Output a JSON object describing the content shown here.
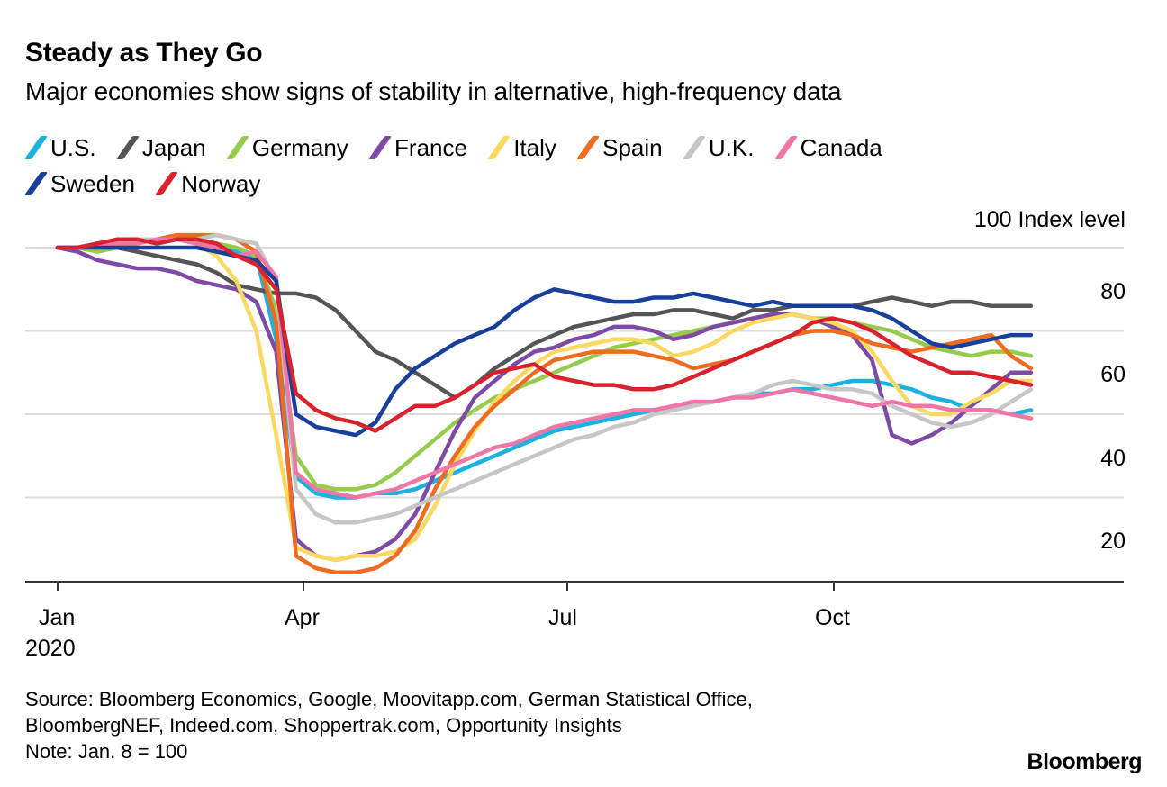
{
  "header": {
    "title": "Steady as They Go",
    "subtitle": "Major economies show signs of stability in alternative, high-frequency data"
  },
  "legend": [
    {
      "label": "U.S.",
      "color": "#1bb2e0"
    },
    {
      "label": "Japan",
      "color": "#555555"
    },
    {
      "label": "Germany",
      "color": "#96cc4e"
    },
    {
      "label": "France",
      "color": "#7d4ba4"
    },
    {
      "label": "Italy",
      "color": "#fbd961"
    },
    {
      "label": "Spain",
      "color": "#ee6b1f"
    },
    {
      "label": "U.K.",
      "color": "#c6c6c6"
    },
    {
      "label": "Canada",
      "color": "#f076a8"
    },
    {
      "label": "Sweden",
      "color": "#18409a"
    },
    {
      "label": "Norway",
      "color": "#d8232f"
    }
  ],
  "footer": {
    "source_line1": "Source: Bloomberg Economics, Google, Moovitapp.com, German Statistical Office,",
    "source_line2": "BloombergNEF, Indeed.com, Shoppertrak.com, Opportunity Insights",
    "note": "Note: Jan. 8 = 100",
    "brand": "Bloomberg"
  },
  "chart_data": {
    "type": "line",
    "title": "Steady as They Go",
    "subtitle": "Major economies show signs of stability in alternative, high-frequency data",
    "ylabel": "100 Index level",
    "xlabel": "",
    "ylim": [
      20,
      100
    ],
    "yticks": [
      100,
      80,
      60,
      40,
      20
    ],
    "ytick_labels": [
      "100 Index level",
      "80",
      "60",
      "40",
      "20"
    ],
    "xticks": [
      "Jan",
      "Apr",
      "Jul",
      "Oct"
    ],
    "xtick_weeks": [
      -1,
      12.3,
      25.5,
      38.9
    ],
    "x_year_label": "2020",
    "x_unit": "weeks since Jan 8, 2020",
    "x": [
      0,
      1,
      2,
      3,
      4,
      5,
      6,
      7,
      8,
      9,
      10,
      11,
      12,
      13,
      14,
      15,
      16,
      17,
      18,
      19,
      20,
      21,
      22,
      23,
      24,
      25,
      26,
      27,
      28,
      29,
      30,
      31,
      32,
      33,
      34,
      35,
      36,
      37,
      38,
      39,
      40,
      41,
      42,
      43,
      44,
      45,
      46,
      47,
      48,
      49
    ],
    "grid": true,
    "legend_position": "top",
    "note": "Jan. 8 = 100",
    "series": [
      {
        "name": "U.S.",
        "color": "#1bb2e0",
        "values": [
          100,
          100,
          101,
          101,
          102,
          101,
          102,
          101,
          100,
          99,
          98,
          78,
          45,
          41,
          40,
          40,
          41,
          41,
          42,
          44,
          46,
          48,
          50,
          52,
          54,
          56,
          57,
          58,
          59,
          60,
          61,
          61,
          63,
          63,
          64,
          65,
          65,
          66,
          66,
          67,
          68,
          68,
          67,
          66,
          64,
          63,
          61,
          61,
          60,
          61
        ]
      },
      {
        "name": "Japan",
        "color": "#555555",
        "values": [
          100,
          100,
          100,
          100,
          99,
          98,
          97,
          96,
          94,
          91,
          90,
          89,
          89,
          88,
          85,
          80,
          75,
          73,
          70,
          67,
          64,
          67,
          71,
          74,
          77,
          79,
          81,
          82,
          83,
          84,
          84,
          85,
          85,
          84,
          83,
          85,
          85,
          86,
          86,
          86,
          86,
          87,
          88,
          87,
          86,
          87,
          87,
          86,
          86,
          86
        ]
      },
      {
        "name": "Germany",
        "color": "#96cc4e",
        "values": [
          100,
          100,
          99,
          100,
          101,
          102,
          103,
          102,
          101,
          100,
          98,
          85,
          50,
          43,
          42,
          42,
          43,
          46,
          50,
          54,
          58,
          61,
          64,
          66,
          68,
          70,
          72,
          74,
          76,
          77,
          78,
          79,
          80,
          81,
          82,
          83,
          84,
          84,
          83,
          83,
          82,
          81,
          80,
          78,
          76,
          75,
          74,
          75,
          75,
          74
        ]
      },
      {
        "name": "France",
        "color": "#7d4ba4",
        "values": [
          100,
          99,
          97,
          96,
          95,
          95,
          94,
          92,
          91,
          90,
          87,
          75,
          30,
          26,
          25,
          26,
          27,
          30,
          36,
          46,
          56,
          64,
          68,
          72,
          75,
          76,
          78,
          79,
          81,
          81,
          80,
          78,
          79,
          81,
          82,
          83,
          84,
          84,
          83,
          81,
          79,
          73,
          55,
          53,
          55,
          58,
          62,
          66,
          70,
          70
        ]
      },
      {
        "name": "Italy",
        "color": "#fbd961",
        "values": [
          100,
          100,
          100,
          101,
          101,
          102,
          102,
          101,
          98,
          92,
          80,
          55,
          28,
          26,
          25,
          26,
          26,
          27,
          30,
          38,
          48,
          56,
          63,
          68,
          72,
          75,
          76,
          77,
          78,
          78,
          77,
          74,
          75,
          77,
          80,
          82,
          83,
          84,
          83,
          82,
          80,
          75,
          68,
          62,
          60,
          60,
          63,
          65,
          68,
          68
        ]
      },
      {
        "name": "Spain",
        "color": "#ee6b1f",
        "values": [
          100,
          100,
          100,
          101,
          101,
          102,
          103,
          103,
          103,
          102,
          99,
          82,
          26,
          23,
          22,
          22,
          23,
          26,
          32,
          42,
          50,
          57,
          62,
          66,
          70,
          73,
          74,
          75,
          75,
          75,
          74,
          73,
          71,
          72,
          73,
          75,
          77,
          79,
          80,
          80,
          79,
          77,
          76,
          75,
          76,
          77,
          78,
          79,
          74,
          71
        ]
      },
      {
        "name": "U.K.",
        "color": "#c6c6c6",
        "values": [
          100,
          100,
          101,
          101,
          102,
          102,
          102,
          102,
          103,
          102,
          101,
          92,
          42,
          36,
          34,
          34,
          35,
          36,
          38,
          40,
          42,
          44,
          46,
          48,
          50,
          52,
          54,
          55,
          57,
          58,
          60,
          61,
          62,
          63,
          64,
          65,
          67,
          68,
          67,
          66,
          66,
          65,
          62,
          60,
          58,
          57,
          58,
          60,
          63,
          66
        ]
      },
      {
        "name": "Canada",
        "color": "#f076a8",
        "values": [
          100,
          100,
          100,
          101,
          101,
          102,
          102,
          101,
          100,
          98,
          99,
          93,
          46,
          42,
          41,
          40,
          41,
          42,
          44,
          46,
          48,
          50,
          52,
          53,
          55,
          57,
          58,
          59,
          60,
          61,
          61,
          62,
          63,
          63,
          64,
          64,
          65,
          66,
          65,
          64,
          63,
          62,
          63,
          62,
          62,
          61,
          61,
          61,
          60,
          59
        ]
      },
      {
        "name": "Sweden",
        "color": "#18409a",
        "values": [
          100,
          100,
          100,
          100,
          100,
          100,
          100,
          100,
          99,
          98,
          97,
          92,
          60,
          57,
          56,
          55,
          58,
          66,
          71,
          74,
          77,
          79,
          81,
          85,
          88,
          90,
          89,
          88,
          87,
          87,
          88,
          88,
          89,
          88,
          87,
          86,
          87,
          86,
          86,
          86,
          86,
          85,
          83,
          80,
          77,
          76,
          77,
          78,
          79,
          79
        ]
      },
      {
        "name": "Norway",
        "color": "#d8232f",
        "values": [
          100,
          100,
          101,
          102,
          102,
          101,
          102,
          102,
          101,
          98,
          96,
          90,
          65,
          61,
          59,
          58,
          56,
          59,
          62,
          62,
          64,
          67,
          70,
          71,
          72,
          69,
          68,
          67,
          67,
          66,
          66,
          67,
          69,
          71,
          73,
          75,
          77,
          79,
          82,
          83,
          82,
          80,
          77,
          74,
          72,
          70,
          70,
          69,
          68,
          67
        ]
      }
    ]
  }
}
